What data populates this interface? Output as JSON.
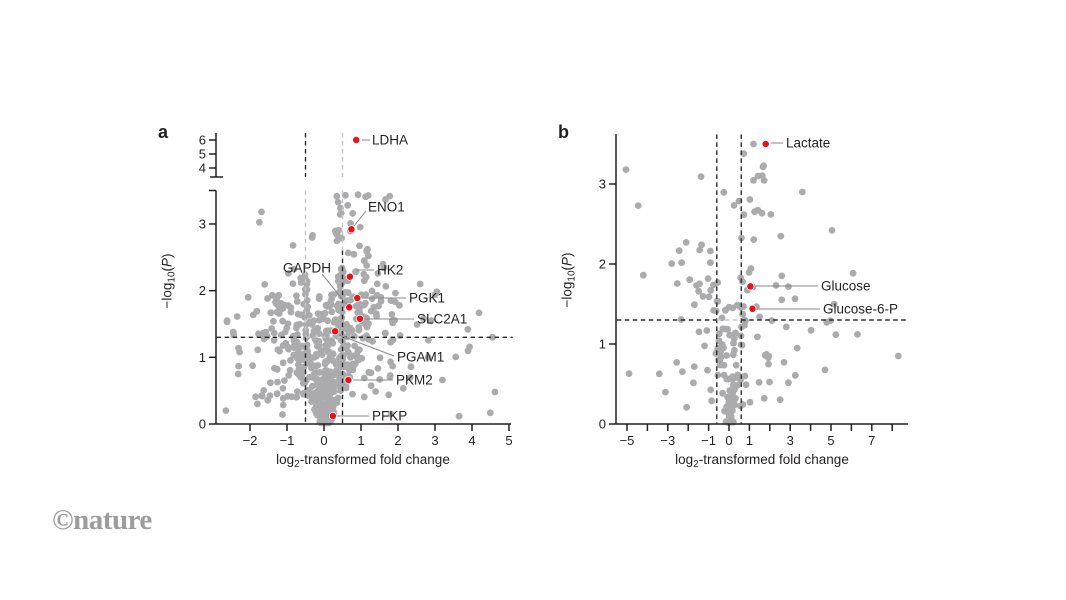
{
  "branding": {
    "copyright": "©",
    "name": "nature"
  },
  "colors": {
    "dot_gray": "#ababad",
    "dot_red": "#e8121c",
    "axis_black": "#231f20",
    "dash_black": "#2a2a2a",
    "dash_gray": "#c7c7c9",
    "leader_gray": "#8a8a8a",
    "text": "#231f20"
  },
  "axis_labels": {
    "x_prefix": "log",
    "x_sub": "2",
    "x_suffix": "-transformed fold change",
    "y_prefix": "−log",
    "y_sub": "10",
    "y_open": "(",
    "y_var": "P",
    "y_close": ")"
  },
  "chart_data": [
    {
      "id": "a",
      "type": "scatter-volcano",
      "letter": "a",
      "xlabel": "log2-transformed fold change",
      "ylabel": "-log10(P)",
      "x_axis": {
        "min": -2.9,
        "max": 5.1,
        "tick_values": [
          -2,
          -1,
          0,
          1,
          2,
          3,
          4,
          5
        ],
        "tick_labels": [
          "−2",
          "−1",
          "0",
          "1",
          "2",
          "3",
          "4",
          "5"
        ]
      },
      "y_axis": {
        "min": 0,
        "max": 3.5,
        "cap": 3.5,
        "tick_values": [
          0,
          1,
          2,
          3
        ],
        "tick_labels": [
          "0",
          "1",
          "2",
          "3"
        ],
        "break_upper_ticks": [
          {
            "v": 4,
            "label": "4"
          },
          {
            "v": 5,
            "label": "5"
          },
          {
            "v": 6,
            "label": "6"
          }
        ]
      },
      "thresholds": {
        "vlines": [
          {
            "x": -0.5,
            "upper_color": "black",
            "segments": [
              {
                "from": 3.5,
                "to": 1.3,
                "color": "gray"
              },
              {
                "from": 1.3,
                "to": 0,
                "color": "black"
              }
            ]
          },
          {
            "x": 0.5,
            "upper_color": "gray",
            "segments": [
              {
                "from": 3.5,
                "to": 2.6,
                "color": "gray"
              },
              {
                "from": 2.6,
                "to": 0,
                "color": "black"
              }
            ]
          }
        ],
        "hline": {
          "y": 1.3,
          "segments": [
            {
              "from": -2.9,
              "to": -0.5,
              "color": "black"
            },
            {
              "from": -0.5,
              "to": 0.5,
              "color": "gray"
            },
            {
              "from": 0.5,
              "to": 5.1,
              "color": "black"
            }
          ]
        }
      },
      "labeled_points": [
        {
          "name": "LDHA",
          "x": 0.87,
          "y": 6.0,
          "segment": "upper"
        },
        {
          "name": "ENO1",
          "x": 0.74,
          "y": 2.92
        },
        {
          "name": "HK2",
          "x": 0.7,
          "y": 2.21
        },
        {
          "name": "GAPDH",
          "x": 0.68,
          "y": 1.75
        },
        {
          "name": "PGK1",
          "x": 0.9,
          "y": 1.89
        },
        {
          "name": "SLC2A1",
          "x": 0.97,
          "y": 1.58
        },
        {
          "name": "PGAM1",
          "x": 0.3,
          "y": 1.39
        },
        {
          "name": "PKM2",
          "x": 0.66,
          "y": 0.66
        },
        {
          "name": "PFKP",
          "x": 0.24,
          "y": 0.12
        }
      ],
      "outlier_points": [
        [
          0.92,
          3.44
        ],
        [
          0.64,
          3.28
        ],
        [
          4.55,
          1.3
        ],
        [
          4.62,
          0.48
        ],
        [
          3.2,
          0.66
        ],
        [
          -2.62,
          1.55
        ],
        [
          -2.45,
          1.38
        ],
        [
          -2.28,
          1.08
        ],
        [
          -2.05,
          1.9
        ],
        [
          2.6,
          2.1
        ],
        [
          2.9,
          1.55
        ]
      ],
      "cloud": {
        "seed": 42,
        "groups": [
          {
            "n": 430,
            "kind": "v",
            "ymax": 1.95,
            "yexp": 1.7,
            "w0": 0.12,
            "wslope": 0.8,
            "xexp": 1.3,
            "pright": 0.54
          },
          {
            "n": 150,
            "kind": "mid",
            "x0": 0.45,
            "xspread": 1.5,
            "xexp": 1.9,
            "ymin": 0.35,
            "ymax": 2.35,
            "pright": 0.6
          },
          {
            "n": 55,
            "kind": "mid",
            "x0": 0.3,
            "xspread": 1.5,
            "xexp": 1.4,
            "ymin": 1.7,
            "ymax": 3.45,
            "pright": 0.85
          },
          {
            "n": 26,
            "kind": "mid",
            "x0": 1.8,
            "xspread": 2.8,
            "xexp": 2.2,
            "ymin": 0.1,
            "ymax": 2.0,
            "pright": 1.0
          },
          {
            "n": 22,
            "kind": "mid",
            "x0": 1.1,
            "xspread": 1.6,
            "xexp": 1.8,
            "ymin": 0.1,
            "ymax": 1.8,
            "pright": 0.0
          }
        ]
      },
      "clamp": {
        "xmin": -2.85,
        "xmax": 5.05,
        "ymin": 0.02,
        "ymax": 3.46
      }
    },
    {
      "id": "b",
      "type": "scatter-volcano",
      "letter": "b",
      "xlabel": "log2-transformed fold change",
      "ylabel": "-log10(P)",
      "x_axis": {
        "min": -5.5,
        "max": 8.8,
        "tick_values": [
          -5,
          -4,
          -3,
          -2,
          -1,
          0,
          1,
          2,
          3,
          4,
          5,
          6,
          7,
          8
        ],
        "tick_labels": [
          "−5",
          "",
          "−3",
          "",
          "−1",
          "0",
          "1",
          "",
          "3",
          "",
          "5",
          "",
          "7",
          ""
        ]
      },
      "y_axis": {
        "min": 0,
        "max": 3.62,
        "tick_values": [
          0,
          1,
          2,
          3
        ],
        "tick_labels": [
          "0",
          "1",
          "2",
          "3"
        ]
      },
      "thresholds": {
        "vlines": [
          {
            "x": -0.6,
            "segments": [
              {
                "from": 3.62,
                "to": 0,
                "color": "black"
              }
            ]
          },
          {
            "x": 0.6,
            "segments": [
              {
                "from": 3.62,
                "to": 0,
                "color": "black"
              }
            ]
          }
        ],
        "hline": {
          "y": 1.3,
          "segments": [
            {
              "from": -5.5,
              "to": -0.6,
              "color": "black"
            },
            {
              "from": -0.6,
              "to": 0.6,
              "color": "gray"
            },
            {
              "from": 0.6,
              "to": 8.8,
              "color": "black"
            }
          ]
        }
      },
      "labeled_points": [
        {
          "name": "Lactate",
          "x": 1.8,
          "y": 3.5
        },
        {
          "name": "Glucose",
          "x": 1.05,
          "y": 1.72
        },
        {
          "name": "Glucose-6-P",
          "x": 1.15,
          "y": 1.44
        }
      ],
      "outlier_points": [
        [
          -5.05,
          3.18
        ],
        [
          -4.45,
          2.73
        ],
        [
          1.2,
          3.5
        ],
        [
          0.72,
          3.38
        ],
        [
          1.42,
          3.1
        ],
        [
          8.3,
          0.85
        ],
        [
          5.05,
          2.42
        ],
        [
          -4.2,
          1.86
        ],
        [
          6.3,
          1.12
        ],
        [
          -4.9,
          0.63
        ],
        [
          3.6,
          2.9
        ],
        [
          2.05,
          2.62
        ]
      ],
      "cloud": {
        "seed": 7,
        "groups": [
          {
            "n": 85,
            "kind": "v",
            "ymax": 1.5,
            "yexp": 1.5,
            "w0": 0.18,
            "wslope": 0.45,
            "xexp": 1.2,
            "pright": 0.58
          },
          {
            "n": 40,
            "kind": "mid",
            "x0": 0.55,
            "xspread": 2.6,
            "xexp": 1.7,
            "ymin": 0.15,
            "ymax": 2.35,
            "pright": 1.0
          },
          {
            "n": 38,
            "kind": "mid",
            "x0": 0.55,
            "xspread": 2.9,
            "xexp": 1.9,
            "ymin": 0.2,
            "ymax": 2.3,
            "pright": 0.0
          },
          {
            "n": 14,
            "kind": "mid",
            "x0": 0.2,
            "xspread": 1.6,
            "xexp": 1.2,
            "ymin": 2.35,
            "ymax": 3.3,
            "pright": 0.7
          },
          {
            "n": 10,
            "kind": "mid",
            "x0": 3.2,
            "xspread": 3.2,
            "xexp": 1.8,
            "ymin": 0.3,
            "ymax": 1.9,
            "pright": 1.0
          }
        ]
      },
      "clamp": {
        "xmin": -5.45,
        "xmax": 8.6,
        "ymin": 0.02,
        "ymax": 3.5
      }
    }
  ]
}
